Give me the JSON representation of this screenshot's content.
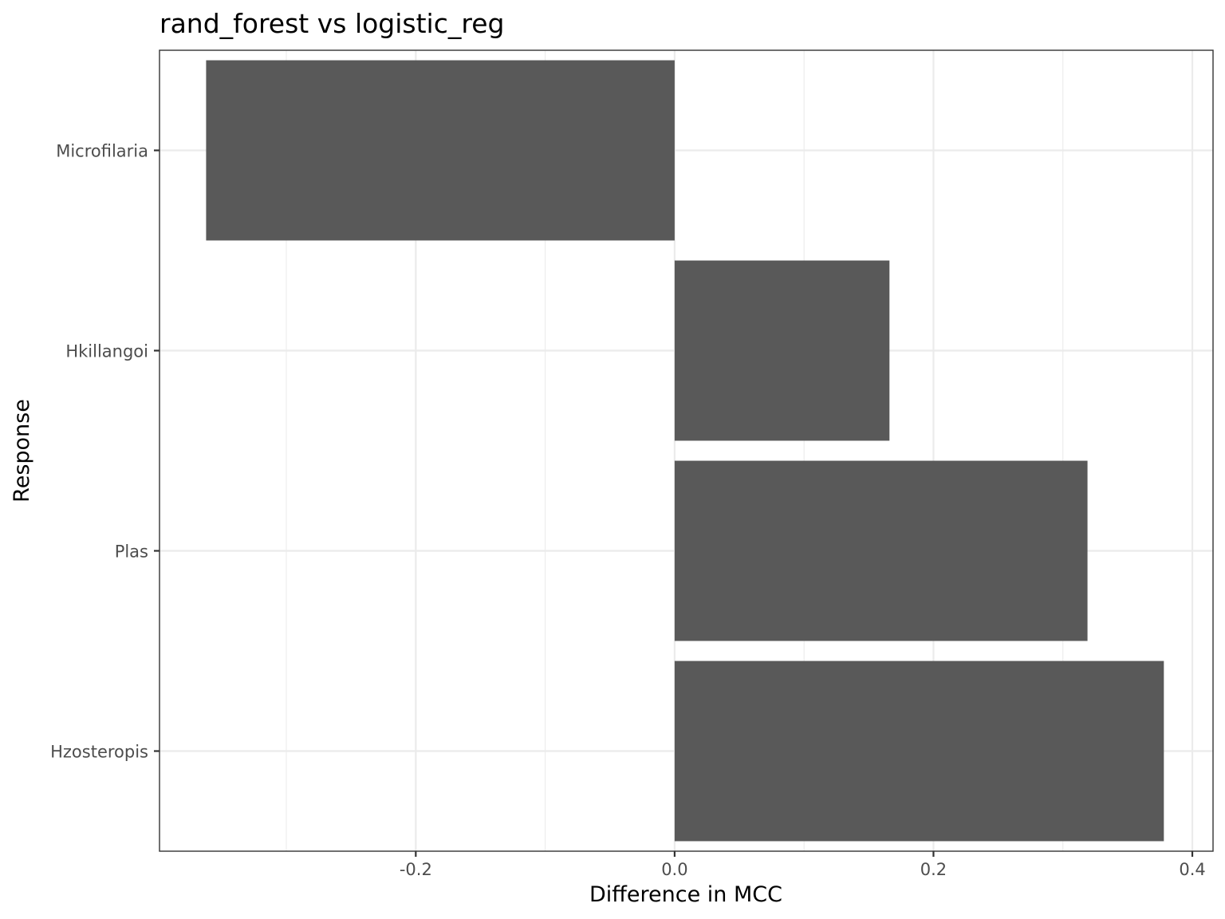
{
  "chart_data": {
    "type": "bar",
    "orientation": "horizontal",
    "title": "rand_forest vs logistic_reg",
    "xlabel": "Difference in MCC",
    "ylabel": "Response",
    "categories": [
      "Microfilaria",
      "Hkillangoi",
      "Plas",
      "Hzosteropis"
    ],
    "values": [
      -0.362,
      0.166,
      0.319,
      0.378
    ],
    "xlim": [
      -0.398,
      0.416
    ],
    "xticks": [
      -0.2,
      0.0,
      0.2,
      0.4
    ],
    "xtick_labels": [
      "-0.2",
      "0.0",
      "0.2",
      "0.4"
    ],
    "grid": true,
    "theme": "bw",
    "bar_color": "#595959",
    "grid_color": "#ebebeb",
    "panel_border_color": "#333333",
    "tick_label_color": "#4d4d4d"
  }
}
